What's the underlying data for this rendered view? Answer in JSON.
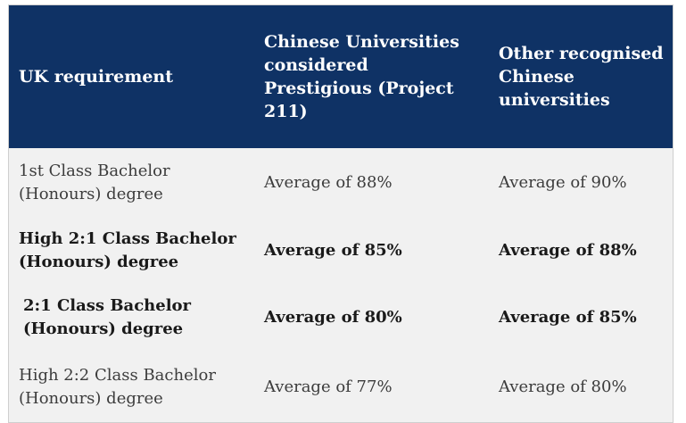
{
  "table": {
    "headers": [
      "UK requirement",
      "Chinese Universities considered Prestigious (Project 211)",
      "Other recognised Chinese universities"
    ],
    "rows": [
      {
        "requirement": "1st Class Bachelor (Honours) degree",
        "prestigious": "Average of 88%",
        "other": "Average of 90%",
        "emphasis": false
      },
      {
        "requirement": "High 2:1 Class Bachelor (Honours) degree",
        "prestigious": "Average of 85%",
        "other": "Average of 88%",
        "emphasis": true
      },
      {
        "requirement": "2:1 Class Bachelor (Honours) degree",
        "prestigious": "Average of 80%",
        "other": "Average of 85%",
        "emphasis": true
      },
      {
        "requirement": "High 2:2 Class Bachelor (Honours) degree",
        "prestigious": "Average of 77%",
        "other": "Average of 80%",
        "emphasis": false
      }
    ]
  },
  "colors": {
    "header_background": "#0f3265",
    "header_text": "#ffffff",
    "body_background": "#f1f1f1",
    "body_text": "#3c3c3c"
  }
}
